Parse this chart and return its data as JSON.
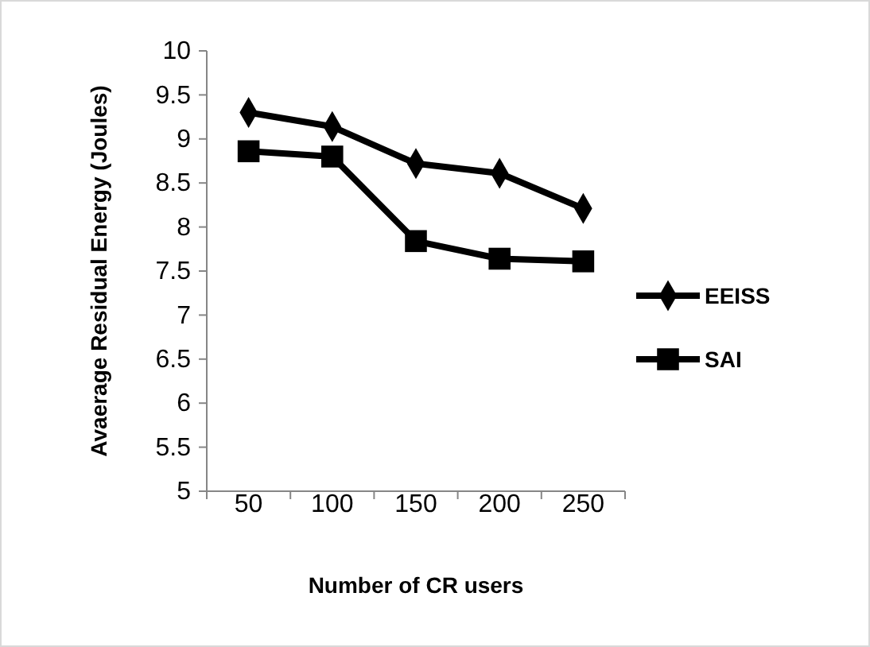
{
  "chart_data": {
    "type": "line",
    "xlabel": "Number of CR users",
    "ylabel": "Avaerage Residual Energy (Joules)",
    "categories": [
      "50",
      "100",
      "150",
      "200",
      "250"
    ],
    "series": [
      {
        "name": "EEISS",
        "color": "#000000",
        "marker": "diamond",
        "values": [
          9.3,
          9.14,
          8.72,
          8.61,
          8.21
        ]
      },
      {
        "name": "SAI",
        "color": "#000000",
        "marker": "square",
        "values": [
          8.86,
          8.8,
          7.84,
          7.64,
          7.61
        ]
      }
    ],
    "ylim": [
      5,
      10
    ],
    "yticks": [
      5,
      5.5,
      6,
      6.5,
      7,
      7.5,
      8,
      8.5,
      9,
      9.5,
      10
    ],
    "grid": false,
    "legend": "right",
    "line_style": "solid"
  }
}
